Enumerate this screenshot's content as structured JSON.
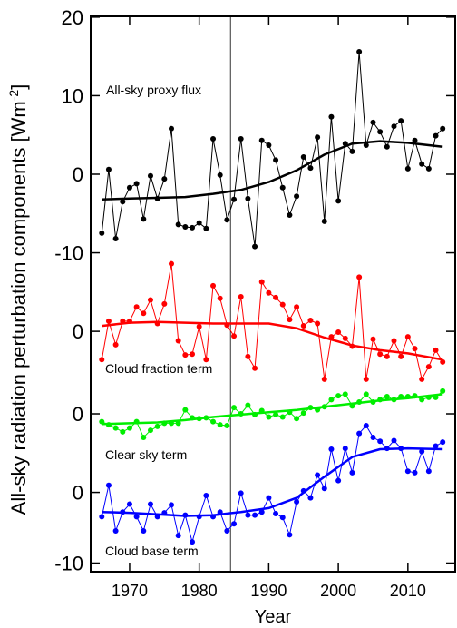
{
  "chart_data": {
    "type": "line",
    "xlabel": "Year",
    "ylabel_parts": [
      "All-sky radiation perturbation components [Wm",
      "-2",
      "]"
    ],
    "xlim": [
      1964.4,
      2016.8
    ],
    "xticks": [
      1970,
      1980,
      1990,
      2000,
      2010
    ],
    "ylim": [
      -50.6,
      20.1
    ],
    "yticks": [
      20,
      10,
      0,
      -10,
      {
        "value": -20,
        "label": "0"
      },
      {
        "value": -30.5,
        "label": "0"
      },
      {
        "value": -40.5,
        "label": "0"
      },
      {
        "value": -49.5,
        "label": "-10"
      }
    ],
    "vline": 1984.5,
    "annotations": [
      "All-sky proxy flux",
      "Cloud fraction term",
      "Clear sky term",
      "Cloud base term"
    ],
    "x": [
      1966,
      1967,
      1968,
      1969,
      1970,
      1971,
      1972,
      1973,
      1974,
      1975,
      1976,
      1977,
      1978,
      1979,
      1980,
      1981,
      1982,
      1983,
      1984,
      1985,
      1986,
      1987,
      1988,
      1989,
      1990,
      1991,
      1992,
      1993,
      1994,
      1995,
      1996,
      1997,
      1998,
      1999,
      2000,
      2001,
      2002,
      2003,
      2004,
      2005,
      2006,
      2007,
      2008,
      2009,
      2010,
      2011,
      2012,
      2013,
      2014,
      2015
    ],
    "series": [
      {
        "color": "#000000",
        "markers": true,
        "line_width": 1,
        "values": [
          -7.5,
          0.6,
          -8.2,
          -3.5,
          -1.7,
          -1.2,
          -5.7,
          -0.2,
          -3.1,
          -0.6,
          5.8,
          -6.4,
          -6.7,
          -6.8,
          -6.2,
          -6.9,
          4.5,
          -0.1,
          -5.8,
          -3.2,
          4.5,
          -3.1,
          -9.2,
          4.3,
          3.7,
          1.8,
          -1.7,
          -5.2,
          -2.8,
          2.2,
          0.8,
          4.7,
          -6.0,
          7.3,
          -3.4,
          3.9,
          2.9,
          15.6,
          3.7,
          6.6,
          5.4,
          3.5,
          6.1,
          6.8,
          0.7,
          4.3,
          1.3,
          0.7,
          4.9,
          5.8
        ]
      },
      {
        "color": "#000000",
        "markers": false,
        "line_width": 2.5,
        "x": [
          1966,
          1970,
          1974,
          1978,
          1982,
          1986,
          1990,
          1994,
          1998,
          2002,
          2006,
          2010,
          2015
        ],
        "values": [
          -3.2,
          -3.1,
          -3.0,
          -2.9,
          -2.5,
          -2.0,
          -1.0,
          0.5,
          2.5,
          3.9,
          4.2,
          4.0,
          3.5
        ]
      },
      {
        "color": "#ff0000",
        "markers": true,
        "line_width": 1,
        "values": [
          -23.6,
          -18.7,
          -21.7,
          -18.7,
          -18.7,
          -16.9,
          -17.7,
          -16.0,
          -19.0,
          -16.5,
          -11.4,
          -21.2,
          -23.0,
          -22.9,
          -19.4,
          -23.6,
          -14.2,
          -15.8,
          -19.2,
          -20.6,
          -15.6,
          -23.2,
          -24.7,
          -13.7,
          -15.1,
          -15.7,
          -16.6,
          -18.5,
          -16.9,
          -19.3,
          -18.6,
          -19.0,
          -26.1,
          -20.7,
          -20.1,
          -20.9,
          -21.9,
          -13.1,
          -26.1,
          -21.0,
          -22.9,
          -23.2,
          -21.2,
          -23.2,
          -20.7,
          -22.2,
          -26.1,
          -24.5,
          -22.4,
          -23.9
        ]
      },
      {
        "color": "#ff0000",
        "markers": false,
        "line_width": 2.5,
        "x": [
          1966,
          1970,
          1974,
          1978,
          1982,
          1986,
          1990,
          1994,
          1998,
          2002,
          2006,
          2010,
          2015
        ],
        "values": [
          -19.3,
          -18.9,
          -18.8,
          -18.9,
          -19.0,
          -19.0,
          -19.0,
          -19.6,
          -20.8,
          -21.8,
          -22.4,
          -22.8,
          -23.6
        ]
      },
      {
        "color": "#00ee00",
        "markers": true,
        "line_width": 1,
        "values": [
          -31.5,
          -31.9,
          -32.3,
          -32.8,
          -32.3,
          -31.5,
          -33.5,
          -32.6,
          -32.1,
          -31.7,
          -31.7,
          -31.7,
          -30.0,
          -31.0,
          -31.1,
          -31.0,
          -31.5,
          -31.9,
          -32.0,
          -29.7,
          -30.5,
          -29.4,
          -30.6,
          -30.1,
          -30.9,
          -30.6,
          -30.9,
          -30.3,
          -31.1,
          -30.4,
          -29.7,
          -30.0,
          -29.6,
          -28.7,
          -28.2,
          -28.0,
          -29.5,
          -29.0,
          -28.0,
          -29.0,
          -28.7,
          -28.3,
          -28.7,
          -28.3,
          -28.3,
          -28.2,
          -28.7,
          -28.4,
          -28.4,
          -27.6
        ]
      },
      {
        "color": "#00ee00",
        "markers": false,
        "line_width": 2.5,
        "x": [
          1966,
          1970,
          1974,
          1978,
          1982,
          1986,
          1990,
          1994,
          1998,
          2002,
          2006,
          2010,
          2015
        ],
        "values": [
          -31.8,
          -31.7,
          -31.6,
          -31.3,
          -30.9,
          -30.6,
          -30.3,
          -30.0,
          -29.6,
          -29.2,
          -28.8,
          -28.5,
          -28.0
        ]
      },
      {
        "color": "#0000ff",
        "markers": true,
        "line_width": 1,
        "values": [
          -43.6,
          -39.6,
          -45.4,
          -43.0,
          -42.0,
          -43.6,
          -45.4,
          -42.0,
          -43.6,
          -43.1,
          -42.1,
          -46.0,
          -43.4,
          -46.8,
          -43.6,
          -40.9,
          -43.6,
          -43.0,
          -45.4,
          -44.5,
          -40.6,
          -43.4,
          -43.4,
          -43.0,
          -41.2,
          -43.2,
          -43.7,
          -45.9,
          -41.7,
          -40.3,
          -41.2,
          -38.3,
          -40.0,
          -35.0,
          -39.0,
          -34.9,
          -38.0,
          -33.0,
          -32.0,
          -33.5,
          -34.0,
          -34.9,
          -33.9,
          -34.9,
          -37.8,
          -38.0,
          -35.3,
          -37.8,
          -34.6,
          -34.1
        ]
      },
      {
        "color": "#0000ff",
        "markers": false,
        "line_width": 2.5,
        "x": [
          1966,
          1970,
          1974,
          1978,
          1982,
          1986,
          1990,
          1994,
          1998,
          2002,
          2006,
          2010,
          2015
        ],
        "values": [
          -43.0,
          -43.1,
          -43.3,
          -43.5,
          -43.4,
          -43.0,
          -42.5,
          -41.2,
          -38.5,
          -36.0,
          -35.0,
          -34.9,
          -35.0
        ]
      }
    ]
  }
}
